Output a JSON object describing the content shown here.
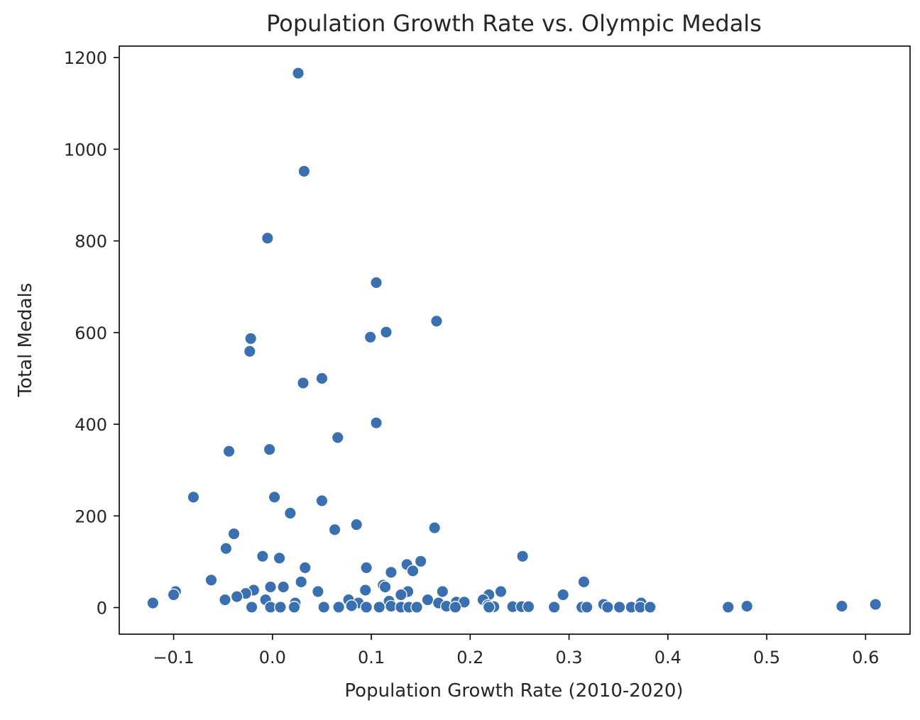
{
  "chart_data": {
    "type": "scatter",
    "title": "Population Growth Rate vs. Olympic Medals",
    "xlabel": "Population Growth Rate (2010-2020)",
    "ylabel": "Total Medals",
    "xlim": [
      -0.155,
      0.645
    ],
    "ylim": [
      -58,
      1225
    ],
    "xticks": [
      -0.1,
      0.0,
      0.1,
      0.2,
      0.3,
      0.4,
      0.5,
      0.6
    ],
    "xtick_labels": [
      "−0.1",
      "0.0",
      "0.1",
      "0.2",
      "0.3",
      "0.4",
      "0.5",
      "0.6"
    ],
    "yticks": [
      0,
      200,
      400,
      600,
      800,
      1000,
      1200
    ],
    "ytick_labels": [
      "0",
      "200",
      "400",
      "600",
      "800",
      "1000",
      "1200"
    ],
    "grid": false,
    "legend": "none",
    "marker_color": "#3a6fb0",
    "points": [
      {
        "x": 0.026,
        "y": 1166
      },
      {
        "x": 0.032,
        "y": 952
      },
      {
        "x": -0.005,
        "y": 806
      },
      {
        "x": 0.105,
        "y": 709
      },
      {
        "x": 0.166,
        "y": 625
      },
      {
        "x": 0.115,
        "y": 601
      },
      {
        "x": 0.099,
        "y": 590
      },
      {
        "x": -0.022,
        "y": 587
      },
      {
        "x": -0.023,
        "y": 559
      },
      {
        "x": 0.05,
        "y": 500
      },
      {
        "x": 0.031,
        "y": 490
      },
      {
        "x": 0.105,
        "y": 403
      },
      {
        "x": 0.066,
        "y": 371
      },
      {
        "x": -0.003,
        "y": 345
      },
      {
        "x": -0.044,
        "y": 341
      },
      {
        "x": -0.08,
        "y": 241
      },
      {
        "x": 0.002,
        "y": 241
      },
      {
        "x": 0.05,
        "y": 233
      },
      {
        "x": 0.018,
        "y": 206
      },
      {
        "x": 0.085,
        "y": 181
      },
      {
        "x": 0.164,
        "y": 174
      },
      {
        "x": 0.063,
        "y": 170
      },
      {
        "x": -0.039,
        "y": 161
      },
      {
        "x": -0.047,
        "y": 129
      },
      {
        "x": -0.01,
        "y": 112
      },
      {
        "x": 0.253,
        "y": 112
      },
      {
        "x": 0.007,
        "y": 108
      },
      {
        "x": 0.15,
        "y": 101
      },
      {
        "x": 0.136,
        "y": 94
      },
      {
        "x": 0.033,
        "y": 87
      },
      {
        "x": 0.095,
        "y": 87
      },
      {
        "x": 0.142,
        "y": 80
      },
      {
        "x": 0.12,
        "y": 77
      },
      {
        "x": -0.062,
        "y": 60
      },
      {
        "x": 0.029,
        "y": 56
      },
      {
        "x": 0.315,
        "y": 56
      },
      {
        "x": 0.112,
        "y": 49
      },
      {
        "x": 0.114,
        "y": 45
      },
      {
        "x": -0.002,
        "y": 45
      },
      {
        "x": 0.011,
        "y": 45
      },
      {
        "x": -0.019,
        "y": 38
      },
      {
        "x": 0.094,
        "y": 38
      },
      {
        "x": 0.046,
        "y": 35
      },
      {
        "x": 0.137,
        "y": 35
      },
      {
        "x": 0.172,
        "y": 35
      },
      {
        "x": 0.231,
        "y": 35
      },
      {
        "x": -0.098,
        "y": 35
      },
      {
        "x": -0.027,
        "y": 31
      },
      {
        "x": -0.1,
        "y": 28
      },
      {
        "x": 0.13,
        "y": 28
      },
      {
        "x": 0.219,
        "y": 28
      },
      {
        "x": 0.294,
        "y": 28
      },
      {
        "x": -0.036,
        "y": 24
      },
      {
        "x": -0.048,
        "y": 17
      },
      {
        "x": -0.007,
        "y": 17
      },
      {
        "x": 0.077,
        "y": 17
      },
      {
        "x": 0.157,
        "y": 17
      },
      {
        "x": 0.213,
        "y": 17
      },
      {
        "x": 0.118,
        "y": 14
      },
      {
        "x": 0.186,
        "y": 12
      },
      {
        "x": 0.194,
        "y": 12
      },
      {
        "x": -0.121,
        "y": 10
      },
      {
        "x": 0.023,
        "y": 10
      },
      {
        "x": 0.087,
        "y": 10
      },
      {
        "x": 0.168,
        "y": 10
      },
      {
        "x": 0.373,
        "y": 10
      },
      {
        "x": 0.335,
        "y": 7
      },
      {
        "x": 0.61,
        "y": 7
      },
      {
        "x": 0.218,
        "y": 5
      },
      {
        "x": 0.08,
        "y": 4
      },
      {
        "x": 0.576,
        "y": 3
      },
      {
        "x": 0.48,
        "y": 3
      },
      {
        "x": 0.12,
        "y": 3
      },
      {
        "x": 0.176,
        "y": 3
      },
      {
        "x": 0.243,
        "y": 2
      },
      {
        "x": 0.252,
        "y": 2
      },
      {
        "x": 0.259,
        "y": 2
      },
      {
        "x": 0.224,
        "y": 2
      },
      {
        "x": -0.021,
        "y": 1
      },
      {
        "x": -0.002,
        "y": 1
      },
      {
        "x": 0.008,
        "y": 1
      },
      {
        "x": 0.022,
        "y": 1
      },
      {
        "x": 0.052,
        "y": 1
      },
      {
        "x": 0.067,
        "y": 1
      },
      {
        "x": 0.095,
        "y": 1
      },
      {
        "x": 0.108,
        "y": 1
      },
      {
        "x": 0.13,
        "y": 1
      },
      {
        "x": 0.138,
        "y": 1
      },
      {
        "x": 0.146,
        "y": 1
      },
      {
        "x": 0.185,
        "y": 1
      },
      {
        "x": 0.219,
        "y": 1
      },
      {
        "x": 0.285,
        "y": 1
      },
      {
        "x": 0.313,
        "y": 1
      },
      {
        "x": 0.318,
        "y": 1
      },
      {
        "x": 0.339,
        "y": 1
      },
      {
        "x": 0.351,
        "y": 1
      },
      {
        "x": 0.363,
        "y": 1
      },
      {
        "x": 0.372,
        "y": 1
      },
      {
        "x": 0.382,
        "y": 1
      },
      {
        "x": 0.461,
        "y": 1
      }
    ]
  }
}
